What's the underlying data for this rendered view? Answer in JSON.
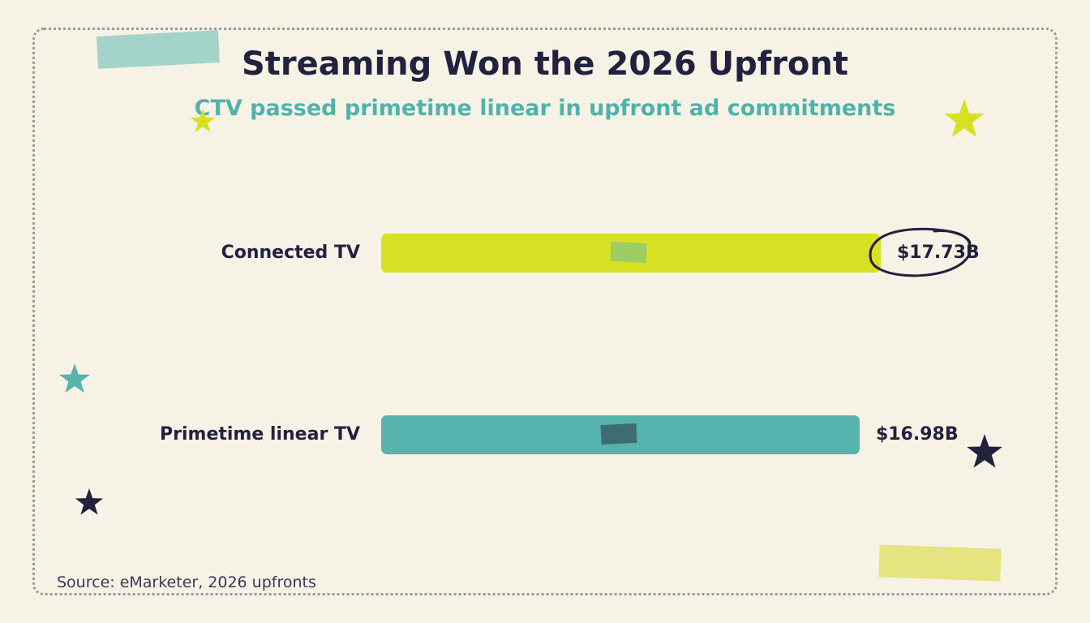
{
  "title": "Streaming Won the 2026 Upfront",
  "subtitle": "CTV passed primetime linear in upfront ad commitments",
  "source": "Source: eMarketer, 2026 upfronts",
  "colors": {
    "background": "#f6f2e6",
    "ctv_bar": "#d8e023",
    "linear_bar": "#56b4ad",
    "text": "#22223f",
    "subtitle": "#4fb3aa"
  },
  "chart_data": {
    "type": "bar",
    "orientation": "horizontal",
    "categories": [
      "Connected TV",
      "Primetime linear TV"
    ],
    "values": [
      17.73,
      16.98
    ],
    "value_labels": [
      "$17.73B",
      "$16.98B"
    ],
    "unit": "$B",
    "highlight": "Connected TV",
    "grid": false,
    "legend": "none"
  },
  "decorations": {
    "stars": [
      "star-icon",
      "star-icon",
      "star-icon",
      "star-icon",
      "star-icon"
    ],
    "tapes": [
      "tape-strip",
      "tape-strip"
    ]
  }
}
